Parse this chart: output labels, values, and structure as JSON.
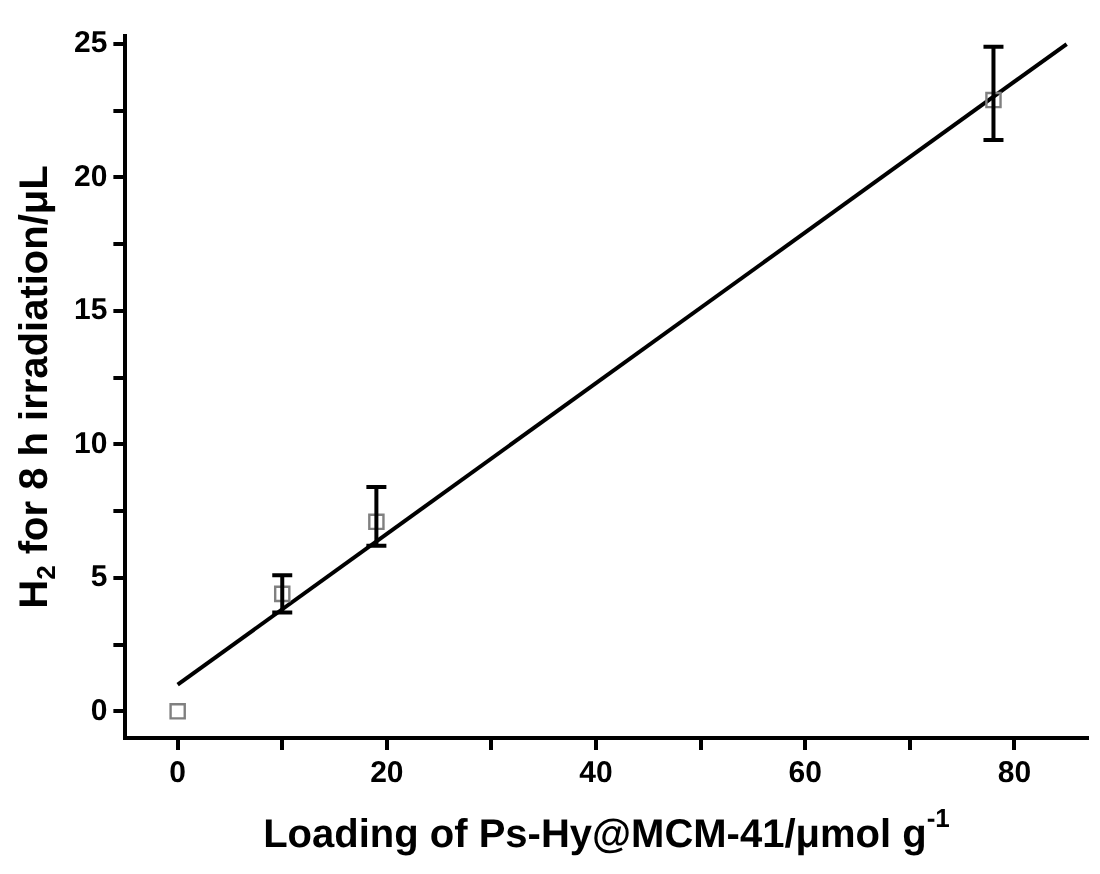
{
  "chart_data": {
    "type": "scatter",
    "xlabel": "Loading of Ps-Hy@MCM-41/μmol g$^{-1}$",
    "ylabel": "H$_{2}$ for 8 h irradiation/μL",
    "xlim": [
      -5,
      87
    ],
    "ylim": [
      -1,
      25.3
    ],
    "xticks": [
      0,
      {
        "value": 10,
        "label": null
      },
      20,
      {
        "value": 30,
        "label": null
      },
      40,
      {
        "value": 50,
        "label": null
      },
      60,
      {
        "value": 70,
        "label": null
      },
      80
    ],
    "yticks": [
      0,
      {
        "value": 2.5,
        "label": null
      },
      5,
      {
        "value": 7.5,
        "label": null
      },
      10,
      {
        "value": 12.5,
        "label": null
      },
      15,
      {
        "value": 17.5,
        "label": null
      },
      20,
      {
        "value": 22.5,
        "label": null
      },
      25
    ],
    "series": [
      {
        "color": "#808080",
        "marker": "square",
        "x": [
          0,
          10,
          19,
          78
        ],
        "values": [
          0,
          4.4,
          7.1,
          22.9
        ],
        "errors": [
          null,
          0.7,
          [
            6.2,
            8.4
          ],
          [
            21.4,
            24.9
          ]
        ]
      },
      {
        "type": "line",
        "color": "#000000",
        "marker": "none",
        "x": [
          0,
          85
        ],
        "values": [
          1.0,
          25.0
        ]
      }
    ],
    "legend": false
  }
}
